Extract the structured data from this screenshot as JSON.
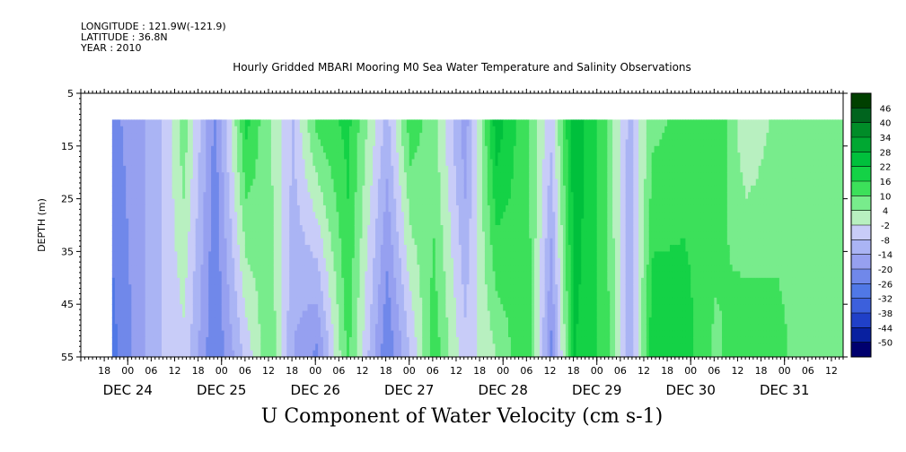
{
  "header": {
    "longitude": "LONGITUDE : 121.9W(-121.9)",
    "latitude": "LATITUDE : 36.8N",
    "year": "YEAR : 2010"
  },
  "chart_data": {
    "type": "heatmap",
    "title": "Hourly Gridded MBARI Mooring M0 Sea Water Temperature and Salinity Observations",
    "xlabel": "U Component of Water Velocity (cm s-1)",
    "ylabel": "DEPTH (m)",
    "ylim": [
      55,
      5
    ],
    "yticks": [
      5,
      15,
      25,
      35,
      45,
      55
    ],
    "x_start": "DEC 23 12:00",
    "x_end": "DEC 31 15:00",
    "x_hour_labels": [
      "18",
      "00",
      "06",
      "12",
      "18",
      "00",
      "06",
      "12",
      "18",
      "00",
      "06",
      "12",
      "18",
      "00",
      "06",
      "12",
      "18",
      "00",
      "06",
      "12",
      "18",
      "00",
      "06",
      "12",
      "18",
      "00",
      "06",
      "12",
      "18",
      "00",
      "06",
      "12"
    ],
    "x_day_labels": [
      "DEC 24",
      "DEC 25",
      "DEC 26",
      "DEC 27",
      "DEC 28",
      "DEC 29",
      "DEC 30",
      "DEC 31"
    ],
    "colorbar_levels": [
      46,
      40,
      34,
      28,
      22,
      16,
      10,
      4,
      -2,
      -8,
      -14,
      -20,
      -26,
      -32,
      -38,
      -44,
      -50
    ],
    "colorbar_colors": [
      "#004000",
      "#00641e",
      "#008c28",
      "#00a832",
      "#00c03c",
      "#14d246",
      "#3ce05a",
      "#78ec8c",
      "#b8f0c0",
      "#c8ccf8",
      "#aab4f4",
      "#96a0f0",
      "#7088ea",
      "#5078e6",
      "#3c60dc",
      "#2040c8",
      "#0820a0",
      "#00006e"
    ],
    "data_start_depth": 10,
    "data_start_time": "DEC 23 20:00",
    "series": [
      {
        "time": "DEC 23 20:00",
        "u_surface": -22,
        "u_bottom": -28
      },
      {
        "time": "DEC 24 08:00",
        "u_surface": -10,
        "u_bottom": -8
      },
      {
        "time": "DEC 24 14:00",
        "u_surface": 8,
        "u_bottom": -4
      },
      {
        "time": "DEC 24 22:00",
        "u_surface": -22,
        "u_bottom": -26
      },
      {
        "time": "DEC 25 06:00",
        "u_surface": 18,
        "u_bottom": -6
      },
      {
        "time": "DEC 25 12:00",
        "u_surface": 4,
        "u_bottom": 10
      },
      {
        "time": "DEC 25 18:00",
        "u_surface": -8,
        "u_bottom": -14
      },
      {
        "time": "DEC 26 00:00",
        "u_surface": 12,
        "u_bottom": -22
      },
      {
        "time": "DEC 26 08:00",
        "u_surface": 18,
        "u_bottom": 12
      },
      {
        "time": "DEC 26 18:00",
        "u_surface": -10,
        "u_bottom": -26
      },
      {
        "time": "DEC 27 00:00",
        "u_surface": 14,
        "u_bottom": -8
      },
      {
        "time": "DEC 27 06:00",
        "u_surface": 6,
        "u_bottom": 14
      },
      {
        "time": "DEC 27 14:00",
        "u_surface": -18,
        "u_bottom": -6
      },
      {
        "time": "DEC 27 22:00",
        "u_surface": 26,
        "u_bottom": 4
      },
      {
        "time": "DEC 28 06:00",
        "u_surface": 10,
        "u_bottom": 16
      },
      {
        "time": "DEC 28 12:00",
        "u_surface": -6,
        "u_bottom": -22
      },
      {
        "time": "DEC 28 18:00",
        "u_surface": 28,
        "u_bottom": 22
      },
      {
        "time": "DEC 29 02:00",
        "u_surface": 10,
        "u_bottom": 14
      },
      {
        "time": "DEC 29 08:00",
        "u_surface": -10,
        "u_bottom": -14
      },
      {
        "time": "DEC 29 14:00",
        "u_surface": 8,
        "u_bottom": 22
      },
      {
        "time": "DEC 29 22:00",
        "u_surface": 12,
        "u_bottom": 20
      },
      {
        "time": "DEC 30 06:00",
        "u_surface": 16,
        "u_bottom": 8
      },
      {
        "time": "DEC 30 14:00",
        "u_surface": -2,
        "u_bottom": 16
      },
      {
        "time": "DEC 30 22:00",
        "u_surface": 6,
        "u_bottom": 12
      },
      {
        "time": "DEC 31 06:00",
        "u_surface": 10,
        "u_bottom": 6
      }
    ]
  }
}
